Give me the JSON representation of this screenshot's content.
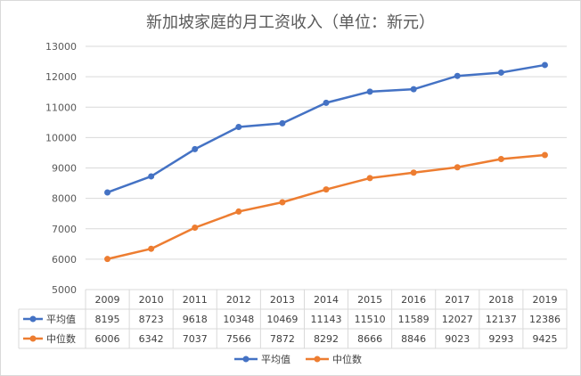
{
  "chart_data": {
    "type": "line",
    "title": "新加坡家庭的月工资收入（单位：新元）",
    "categories": [
      "2009",
      "2010",
      "2011",
      "2012",
      "2013",
      "2014",
      "2015",
      "2016",
      "2017",
      "2018",
      "2019"
    ],
    "ylim": [
      5000,
      13000
    ],
    "yticks": [
      5000,
      6000,
      7000,
      8000,
      9000,
      10000,
      11000,
      12000,
      13000
    ],
    "grid": true,
    "legend_position": "bottom",
    "data_table": true,
    "series": [
      {
        "name": "平均值",
        "color": "#4472C4",
        "values": [
          8195,
          8723,
          9618,
          10348,
          10469,
          11143,
          11510,
          11589,
          12027,
          12137,
          12386
        ]
      },
      {
        "name": "中位数",
        "color": "#ED7D31",
        "values": [
          6006,
          6342,
          7037,
          7566,
          7872,
          8292,
          8666,
          8846,
          9023,
          9293,
          9425
        ]
      }
    ]
  }
}
